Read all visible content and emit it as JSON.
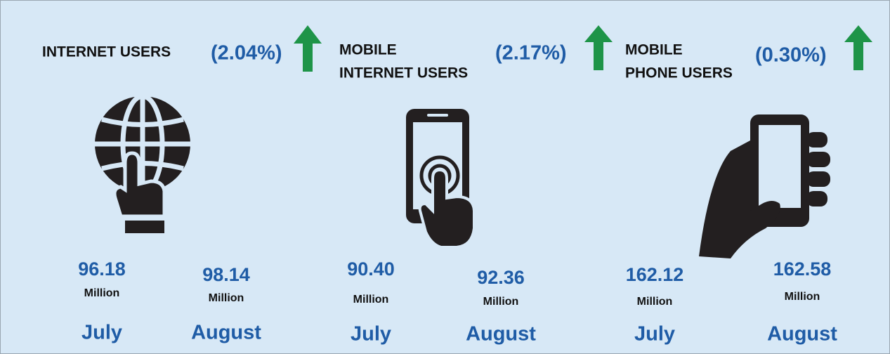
{
  "panels": [
    {
      "title": [
        "INTERNET USERS"
      ],
      "change": "(2.04%)",
      "readings": [
        {
          "value": "96.18",
          "unit": "Million",
          "month": "July"
        },
        {
          "value": "98.14",
          "unit": "Million",
          "month": "August"
        }
      ]
    },
    {
      "title": [
        "MOBILE",
        "INTERNET USERS"
      ],
      "change": "(2.17%)",
      "readings": [
        {
          "value": "90.40",
          "unit": "Million",
          "month": "July"
        },
        {
          "value": "92.36",
          "unit": "Million",
          "month": "August"
        }
      ]
    },
    {
      "title": [
        "MOBILE",
        "PHONE USERS"
      ],
      "change": "(0.30%)",
      "readings": [
        {
          "value": "162.12",
          "unit": "Million",
          "month": "July"
        },
        {
          "value": "162.58",
          "unit": "Million",
          "month": "August"
        }
      ]
    }
  ]
}
